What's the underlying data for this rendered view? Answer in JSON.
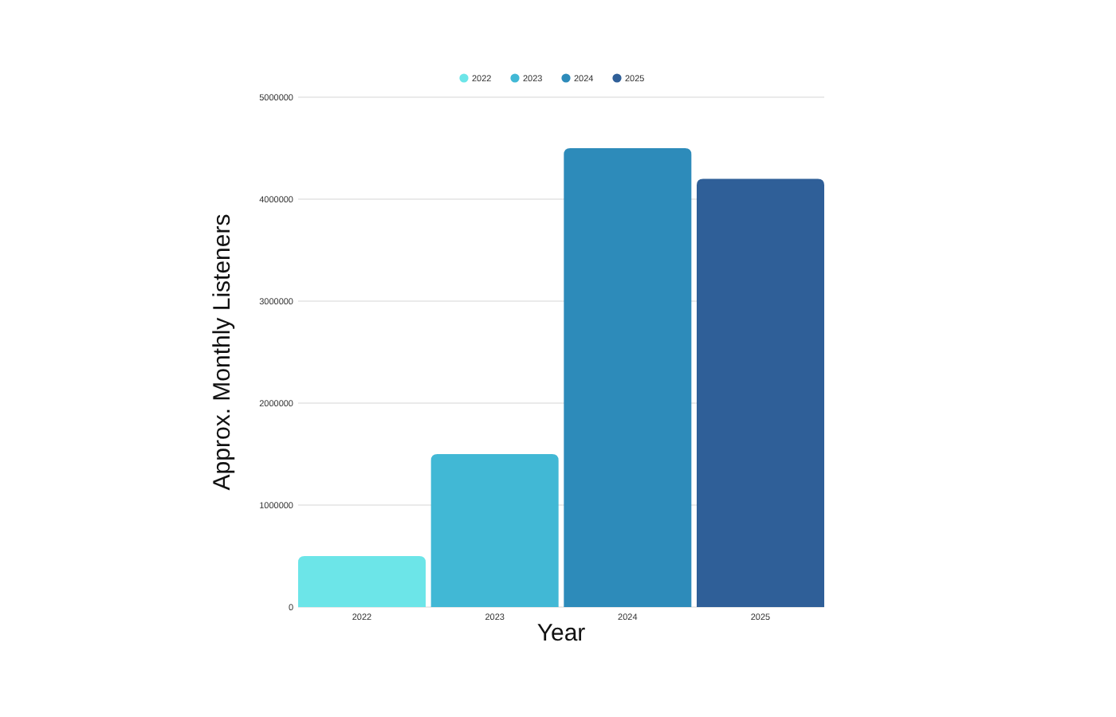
{
  "chart_data": {
    "type": "bar",
    "xlabel": "Year",
    "ylabel": "Approx. Monthly Listeners",
    "categories": [
      "2022",
      "2023",
      "2024",
      "2025"
    ],
    "series": [
      {
        "name": "2022",
        "color": "#6ce5e8",
        "values": [
          500000,
          null,
          null,
          null
        ]
      },
      {
        "name": "2023",
        "color": "#41b8d5",
        "values": [
          null,
          1500000,
          null,
          null
        ]
      },
      {
        "name": "2024",
        "color": "#2d8bba",
        "values": [
          null,
          null,
          4500000,
          null
        ]
      },
      {
        "name": "2025",
        "color": "#2f5f98",
        "values": [
          null,
          null,
          null,
          4200000
        ]
      }
    ],
    "ylim": [
      0,
      5000000
    ],
    "yticks": [
      0,
      1000000,
      2000000,
      3000000,
      4000000,
      5000000
    ],
    "grid": "y",
    "legend": "top"
  }
}
